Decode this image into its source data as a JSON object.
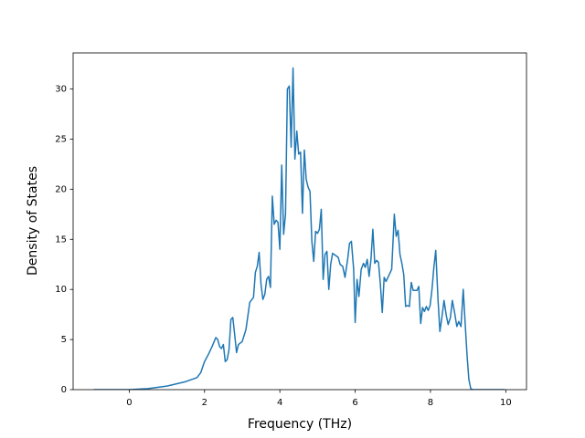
{
  "chart_data": {
    "type": "line",
    "xlabel": "Frequency (THz)",
    "ylabel": "Density of States",
    "color": "#1f77b4",
    "x": [
      -0.94,
      0,
      0.5,
      1,
      1.5,
      1.8,
      1.9,
      2.0,
      2.1,
      2.2,
      2.3,
      2.35,
      2.4,
      2.45,
      2.5,
      2.55,
      2.6,
      2.65,
      2.7,
      2.75,
      2.8,
      2.85,
      2.9,
      3.0,
      3.1,
      3.2,
      3.3,
      3.35,
      3.4,
      3.45,
      3.5,
      3.55,
      3.6,
      3.65,
      3.7,
      3.75,
      3.8,
      3.85,
      3.9,
      3.95,
      4.0,
      4.05,
      4.1,
      4.15,
      4.2,
      4.25,
      4.3,
      4.35,
      4.4,
      4.45,
      4.5,
      4.55,
      4.6,
      4.65,
      4.7,
      4.75,
      4.8,
      4.85,
      4.9,
      4.95,
      5.0,
      5.05,
      5.1,
      5.15,
      5.2,
      5.25,
      5.3,
      5.35,
      5.4,
      5.55,
      5.6,
      5.67,
      5.73,
      5.8,
      5.85,
      5.9,
      5.96,
      6.0,
      6.05,
      6.1,
      6.16,
      6.22,
      6.27,
      6.32,
      6.37,
      6.42,
      6.47,
      6.52,
      6.57,
      6.62,
      6.67,
      6.72,
      6.77,
      6.82,
      6.92,
      6.97,
      7.04,
      7.09,
      7.14,
      7.19,
      7.24,
      7.29,
      7.34,
      7.39,
      7.44,
      7.49,
      7.54,
      7.64,
      7.69,
      7.74,
      7.79,
      7.84,
      7.89,
      7.94,
      7.99,
      8.04,
      8.09,
      8.14,
      8.2,
      8.25,
      8.31,
      8.36,
      8.42,
      8.47,
      8.53,
      8.58,
      8.64,
      8.7,
      8.75,
      8.81,
      8.87,
      8.92,
      8.97,
      9.02,
      9.07,
      9.12,
      9.97
    ],
    "values": [
      0,
      0,
      0.1,
      0.35,
      0.8,
      1.2,
      1.7,
      2.8,
      3.5,
      4.3,
      5.2,
      5.0,
      4.3,
      4.1,
      4.5,
      2.8,
      3.0,
      4.0,
      7.0,
      7.2,
      5.5,
      3.7,
      4.5,
      4.8,
      6.0,
      8.7,
      9.2,
      11.7,
      12.3,
      13.7,
      10.5,
      9.0,
      9.5,
      11.0,
      11.3,
      10.2,
      19.3,
      16.5,
      16.9,
      16.7,
      14.0,
      22.4,
      15.5,
      17.5,
      30.0,
      30.3,
      24.2,
      32.1,
      23.0,
      25.8,
      23.5,
      23.7,
      17.6,
      23.9,
      21.0,
      20.2,
      19.8,
      14.8,
      12.8,
      15.8,
      15.6,
      16.0,
      18.0,
      11.0,
      13.5,
      13.8,
      10.0,
      12.5,
      13.6,
      13.2,
      12.5,
      12.3,
      11.2,
      13.0,
      14.6,
      14.8,
      12.0,
      6.7,
      11.0,
      9.3,
      12.0,
      12.6,
      12.2,
      13.0,
      11.3,
      13.0,
      16.0,
      12.6,
      12.9,
      12.7,
      10.5,
      7.7,
      11.2,
      10.8,
      11.6,
      12.0,
      17.5,
      15.3,
      15.9,
      13.5,
      12.6,
      11.5,
      8.3,
      8.4,
      8.3,
      10.7,
      9.9,
      9.9,
      10.3,
      6.6,
      8.2,
      7.8,
      8.3,
      7.9,
      8.4,
      10.0,
      12.2,
      13.9,
      9.0,
      5.8,
      7.4,
      8.9,
      7.4,
      6.5,
      7.2,
      8.9,
      7.7,
      6.3,
      6.8,
      6.3,
      10.0,
      6.7,
      3.5,
      1.0,
      0.1,
      0,
      0
    ],
    "xlim": [
      -1.49,
      10.55
    ],
    "xticks": [
      0,
      2,
      4,
      6,
      8,
      10
    ],
    "ylim": [
      0,
      33.6
    ],
    "yticks": [
      0,
      5,
      10,
      15,
      20,
      25,
      30
    ]
  }
}
